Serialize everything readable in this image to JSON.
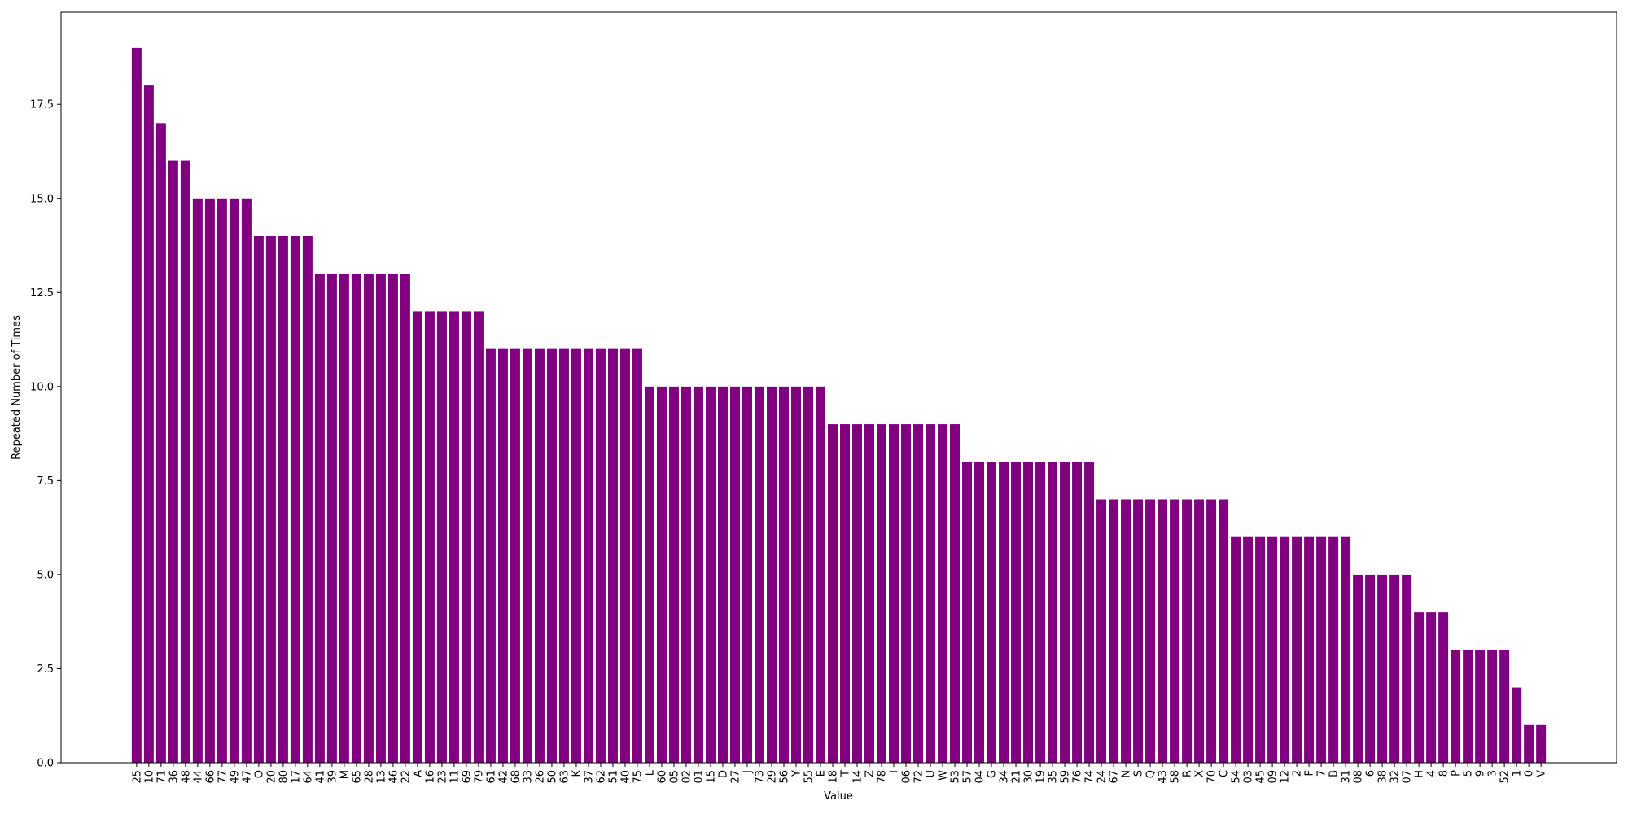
{
  "chart_data": {
    "type": "bar",
    "x_label": "Value",
    "y_label": "Repeated Number of Times",
    "categories": [
      "25",
      "10",
      "71",
      "36",
      "48",
      "44",
      "66",
      "77",
      "49",
      "47",
      "O",
      "20",
      "80",
      "17",
      "64",
      "41",
      "39",
      "M",
      "65",
      "28",
      "13",
      "46",
      "22",
      "A",
      "16",
      "23",
      "11",
      "69",
      "79",
      "61",
      "42",
      "68",
      "33",
      "26",
      "50",
      "63",
      "K",
      "37",
      "62",
      "51",
      "40",
      "75",
      "L",
      "60",
      "05",
      "02",
      "01",
      "15",
      "D",
      "27",
      "J",
      "73",
      "29",
      "56",
      "Y",
      "55",
      "E",
      "18",
      "T",
      "14",
      "Z",
      "78",
      "I",
      "06",
      "72",
      "U",
      "W",
      "53",
      "57",
      "04",
      "G",
      "34",
      "21",
      "30",
      "19",
      "35",
      "59",
      "76",
      "74",
      "24",
      "67",
      "N",
      "S",
      "Q",
      "43",
      "58",
      "R",
      "X",
      "70",
      "C",
      "54",
      "03",
      "45",
      "09",
      "12",
      "2",
      "F",
      "7",
      "B",
      "31",
      "08",
      "6",
      "38",
      "32",
      "07",
      "H",
      "4",
      "8",
      "P",
      "5",
      "9",
      "3",
      "52",
      "1",
      "0",
      "V"
    ],
    "values": [
      19,
      18,
      17,
      16,
      16,
      15,
      15,
      15,
      15,
      15,
      14,
      14,
      14,
      14,
      14,
      13,
      13,
      13,
      13,
      13,
      13,
      13,
      13,
      12,
      12,
      12,
      12,
      12,
      12,
      11,
      11,
      11,
      11,
      11,
      11,
      11,
      11,
      11,
      11,
      11,
      11,
      11,
      10,
      10,
      10,
      10,
      10,
      10,
      10,
      10,
      10,
      10,
      10,
      10,
      10,
      10,
      10,
      9,
      9,
      9,
      9,
      9,
      9,
      9,
      9,
      9,
      9,
      9,
      8,
      8,
      8,
      8,
      8,
      8,
      8,
      8,
      8,
      8,
      8,
      7,
      7,
      7,
      7,
      7,
      7,
      7,
      7,
      7,
      7,
      7,
      6,
      6,
      6,
      6,
      6,
      6,
      6,
      6,
      6,
      6,
      5,
      5,
      5,
      5,
      5,
      4,
      4,
      4,
      3,
      3,
      3,
      3,
      3,
      2,
      1,
      1
    ],
    "color": "#800080",
    "ylim": [
      0,
      19.95
    ],
    "yticks": [
      {
        "value": 0,
        "label": "0.0"
      },
      2.5,
      {
        "value": 5,
        "label": "5.0"
      },
      7.5,
      {
        "value": 10,
        "label": "10.0"
      },
      12.5,
      {
        "value": 15,
        "label": "15.0"
      },
      17.5
    ]
  }
}
